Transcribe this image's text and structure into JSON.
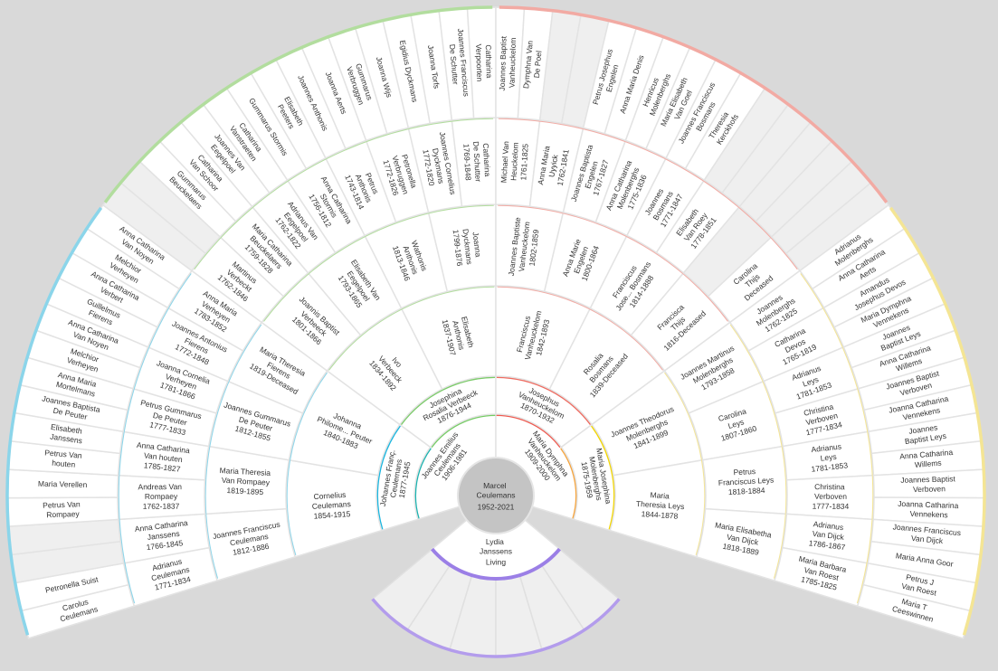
{
  "root": {
    "name": "Marcel Ceulemans",
    "years": "1952-2021"
  },
  "spouse": {
    "name": "Lydia Janssens",
    "status": "Living"
  },
  "generations": [
    [
      {
        "name": "Joannes Emilius Ceulemans",
        "years": "1906-1981"
      },
      {
        "name": "Maria Dymphna Vanheuckelom",
        "years": "1909-2000"
      }
    ],
    [
      {
        "name": "Johannes Franç. Ceulemans",
        "years": "1877-1945"
      },
      {
        "name": "Josephina Rosalia Verbeeck",
        "years": "1876-1944"
      },
      {
        "name": "Josephus Vanheuckelom",
        "years": "1870-1932"
      },
      {
        "name": "Maria Josephina Molenberghs",
        "years": "1875-1959"
      }
    ],
    [
      {
        "name": "Cornelius Ceulemans",
        "years": "1854-1915"
      },
      {
        "name": "Johanna Philome... Peuter",
        "years": "1840-1883"
      },
      {
        "name": "Ivo Verbeeck",
        "years": "1834-1892"
      },
      {
        "name": "Elisabeth Anthonis",
        "years": "1837-1907"
      },
      {
        "name": "Franciscus Vanheuckelom",
        "years": "1842-1893"
      },
      {
        "name": "Rosalia Bosmans",
        "years": "1839-Deceased"
      },
      {
        "name": "Joannes Theodorus Molenberghs",
        "years": "1841-1899"
      },
      {
        "name": "Maria Theresia Leys",
        "years": "1844-1878"
      }
    ],
    [
      {
        "name": "Joannes Franciscus Ceulemans",
        "years": "1812-1886"
      },
      {
        "name": "Maria Theresia Van Rompaey",
        "years": "1819-1895"
      },
      {
        "name": "Joannes Gummarus De Peuter",
        "years": "1812-1855"
      },
      {
        "name": "Maria Theresia Fierens",
        "years": "1819-Deceased"
      },
      {
        "name": "Joannis Baptist Verbeeck",
        "years": "1801-1866"
      },
      {
        "name": "Elisabeth Van Eegelpoel",
        "years": "1793-1865"
      },
      {
        "name": "Wathonis Anthonis",
        "years": "1813-1846"
      },
      {
        "name": "Joanna Dyckmans",
        "years": "1799-1876"
      },
      {
        "name": "Joannes Baptiste Vanheuckelom",
        "years": "1802-1859"
      },
      {
        "name": "Anna Marie Engelen",
        "years": "1800-1864"
      },
      {
        "name": "Franciscus Jose... Bosmans",
        "years": "1814-1888"
      },
      {
        "name": "Francisca Thijs",
        "years": "1816-Deceased"
      },
      {
        "name": "Joannes Martinus Molenberghs",
        "years": "1793-1858"
      },
      {
        "name": "Carolina Leys",
        "years": "1807-1860"
      },
      {
        "name": "Petrus Franciscus Leys",
        "years": "1818-1884"
      },
      {
        "name": "Maria Elisabetha Van Dijck",
        "years": "1818-1889"
      }
    ],
    [
      {
        "name": "Adrianus Ceulemans",
        "years": "1771-1834"
      },
      {
        "name": "Anna Catharina Janssens",
        "years": "1766-1845"
      },
      {
        "name": "Andreas Van Rompaey",
        "years": "1762-1837"
      },
      {
        "name": "Anna Catharina Van houten",
        "years": "1785-1827"
      },
      {
        "name": "Petrus Gummarus De Peuter",
        "years": "1777-1833"
      },
      {
        "name": "Joanna Cornelia Verheyen",
        "years": "1781-1866"
      },
      {
        "name": "Joannes Antonius Fierens",
        "years": "1772-1848"
      },
      {
        "name": "Anna Maria Verheyen",
        "years": "1783-1852"
      },
      {
        "name": "Martinus Verbeckt",
        "years": "1762-1846"
      },
      {
        "name": "Maria Catharina Beuckelaers",
        "years": "1759-1828"
      },
      {
        "name": "Adrianus Van Eegelpoel",
        "years": "1762-1822"
      },
      {
        "name": "Anna Catharina Stormis",
        "years": "1756-1812"
      },
      {
        "name": "Petrus Anthonis",
        "years": "1743-1814"
      },
      {
        "name": "Petronella Verbruggen",
        "years": "1772-1826"
      },
      {
        "name": "Joannes Cornelius Dyckmans",
        "years": "1772-1820"
      },
      {
        "name": "Catharina De Schutter",
        "years": "1769-1848"
      },
      {
        "name": "Michael Van Heuckelom",
        "years": "1761-1825"
      },
      {
        "name": "Anna Maria Uyyick",
        "years": "1762-1841"
      },
      {
        "name": "Joannes Baptista Engelen",
        "years": "1767-1827"
      },
      {
        "name": "Anna Catharina Molenberghs",
        "years": "1775-1836"
      },
      {
        "name": "Joannes Bosmans",
        "years": "1771-1847"
      },
      {
        "name": "Elisabeth Van Roey",
        "years": "1778-1851"
      },
      null,
      {
        "name": "Carolina Thijs",
        "years": "Deceased"
      },
      {
        "name": "Joannes Molenberghs",
        "years": "1762-1825"
      },
      {
        "name": "Catharina Devos",
        "years": "1765-1819"
      },
      {
        "name": "Adrianus Leys",
        "years": "1781-1853"
      },
      {
        "name": "Christina Verboven",
        "years": "1777-1834"
      },
      {
        "name": "Adrianus Leys",
        "years": "1781-1853"
      },
      {
        "name": "Christina Verboven",
        "years": "1777-1834"
      },
      {
        "name": "Adrianus Van Dijck",
        "years": "1786-1867"
      },
      {
        "name": "Maria Barbara Van Roest",
        "years": "1785-1825"
      }
    ],
    [
      {
        "name": "Carolus Ceulemans"
      },
      {
        "name": "Petronella Suist"
      },
      null,
      null,
      {
        "name": "Petrus Van Rompaey"
      },
      {
        "name": "Maria Verellen"
      },
      {
        "name": "Petrus Van houten"
      },
      {
        "name": "Elisabeth Janssens"
      },
      {
        "name": "Joannes Baptista De Peuter"
      },
      {
        "name": "Anna Maria Mortelmans"
      },
      {
        "name": "Melchior Verheyen"
      },
      {
        "name": "Anna Catharina Van Noyen"
      },
      {
        "name": "Guillelmus Fierens"
      },
      {
        "name": "Anna Catharina Verbert"
      },
      {
        "name": "Melchior Verheyen"
      },
      {
        "name": "Anna Catharina Van Noyen"
      },
      null,
      null,
      {
        "name": "Gummarus Beuckelaers"
      },
      {
        "name": "Catharina Van Schoor"
      },
      {
        "name": "Joannes Van Eegelpoel"
      },
      {
        "name": "Catharina Vanstraeten"
      },
      {
        "name": "Gummarus Stormis"
      },
      {
        "name": "Elisabeth Peeters"
      },
      {
        "name": "Joannes Anthonis"
      },
      {
        "name": "Joanna Aerts"
      },
      {
        "name": "Gummarus Verbruggen"
      },
      {
        "name": "Joanna Wijs"
      },
      {
        "name": "Egidius Dyckmans"
      },
      {
        "name": "Joanna Torfs"
      },
      {
        "name": "Joannes Franciscus De Schutter"
      },
      {
        "name": "Catharina Verpoorten"
      },
      {
        "name": "Joannes Baptist Vanheuckelom"
      },
      {
        "name": "Dymphna Van De Poel"
      },
      null,
      null,
      {
        "name": "Petrus Josephus Engelen"
      },
      {
        "name": "Anna Maria Denis"
      },
      {
        "name": "Henricus Molenberghs"
      },
      {
        "name": "Maria Elisabeth Van Goel"
      },
      {
        "name": "Joannes Franciscus Bosmans"
      },
      {
        "name": "Theresia Kerckhofs"
      },
      null,
      null,
      null,
      null,
      null,
      null,
      {
        "name": "Adrianus Molenberghs"
      },
      {
        "name": "Anna Catharina Aerts"
      },
      {
        "name": "Amandus Josephus Devos"
      },
      {
        "name": "Maria Dymphna Vennekens"
      },
      {
        "name": "Joannes Baptist Leys"
      },
      {
        "name": "Anna Catharina Willems"
      },
      {
        "name": "Joannes Baptist Verboven"
      },
      {
        "name": "Joanna Catharina Vennekens"
      },
      {
        "name": "Joannes Baptist Leys"
      },
      {
        "name": "Anna Catharina Willems"
      },
      {
        "name": "Joannes Baptist Verboven"
      },
      {
        "name": "Joanna Catharina Vennekens"
      },
      {
        "name": "Joannes Franciscus Van Dijck"
      },
      {
        "name": "Maria Anna Goor"
      },
      {
        "name": "Petrus J Van Roest"
      },
      {
        "name": "Maria T Ceeswinnen"
      }
    ]
  ]
}
